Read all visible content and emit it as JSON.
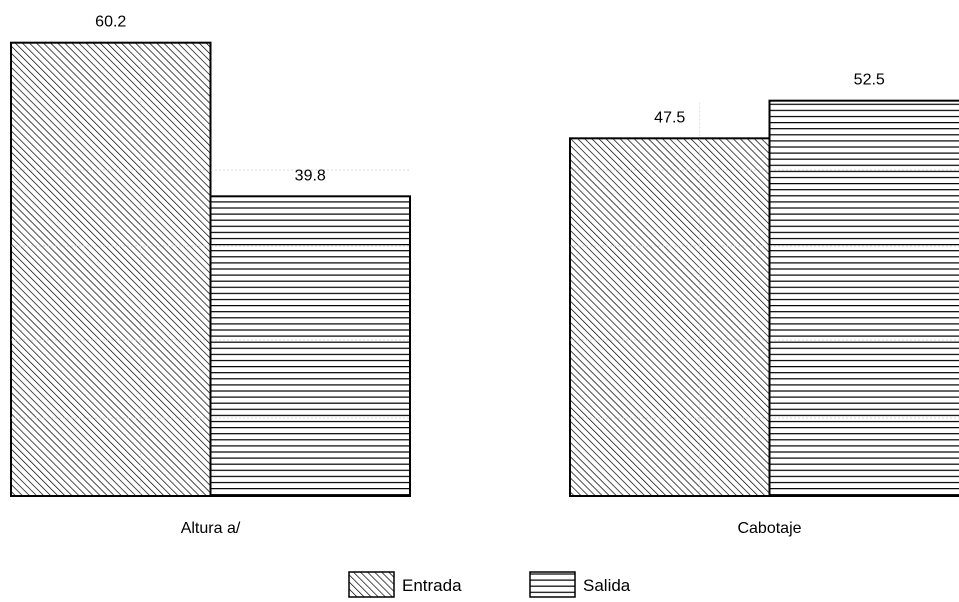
{
  "chart_data": {
    "type": "bar",
    "categories": [
      "Altura a/",
      "Cabotaje"
    ],
    "series": [
      {
        "name": "Entrada",
        "values": [
          60.2,
          47.5
        ],
        "pattern": "diagonal-hatch"
      },
      {
        "name": "Salida",
        "values": [
          39.8,
          52.5
        ],
        "pattern": "horizontal-lines"
      }
    ],
    "data_labels": [
      [
        "60.2",
        "47.5"
      ],
      [
        "39.8",
        "52.5"
      ]
    ],
    "ylim": [
      0,
      70
    ],
    "grid": true,
    "legend_position": "bottom-center",
    "title": "",
    "xlabel": "",
    "ylabel": "",
    "colors": {
      "stroke": "#000000",
      "hatch": "#000000",
      "grid": "#cccccc",
      "background": "#ffffff"
    }
  }
}
